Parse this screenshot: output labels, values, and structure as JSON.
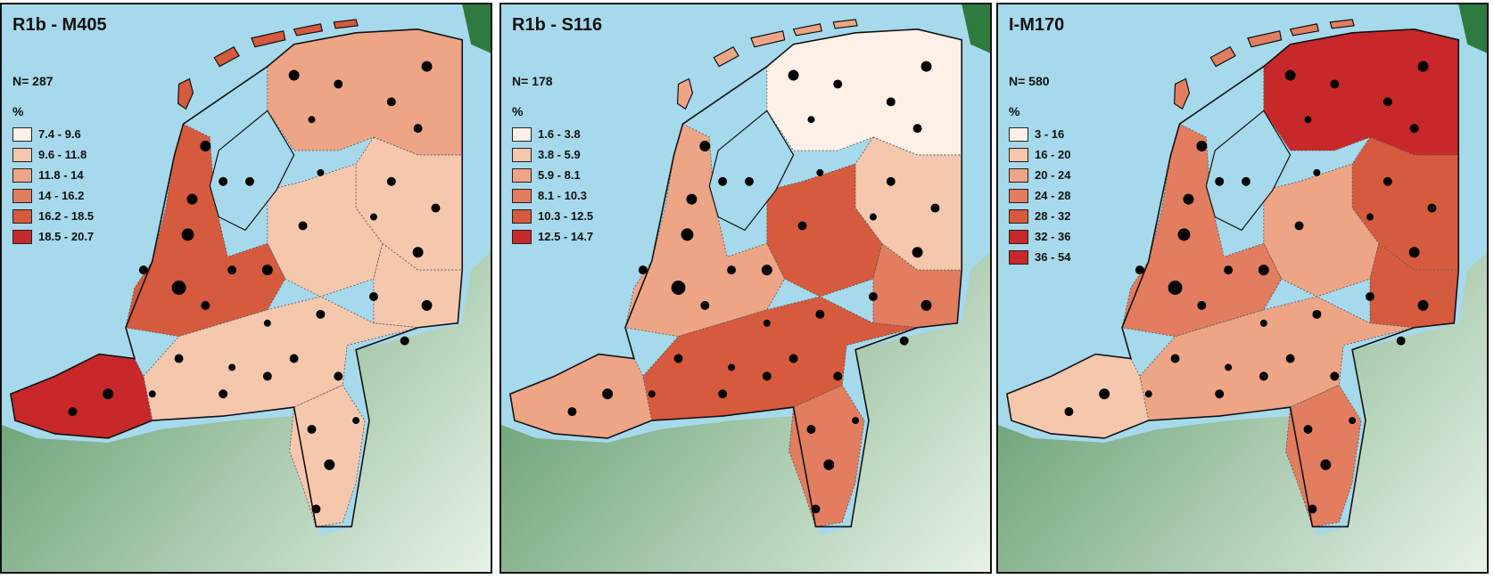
{
  "colors": {
    "sea": "#a6d9ec",
    "land_dark": "#2f7a3e",
    "land_light": "#e6f2e6",
    "border": "#111111"
  },
  "panels": [
    {
      "title": "R1b - M405",
      "n": "N= 287",
      "unit": "%",
      "legend": [
        {
          "label": "7.4 - 9.6",
          "color": "#fdf0e6"
        },
        {
          "label": "9.6 - 11.8",
          "color": "#f5c7ad"
        },
        {
          "label": "11.8 - 14",
          "color": "#eda586"
        },
        {
          "label": "14 - 16.2",
          "color": "#e27d60"
        },
        {
          "label": "16.2 - 18.5",
          "color": "#d65a3d"
        },
        {
          "label": "18.5 - 20.7",
          "color": "#c8282a"
        }
      ],
      "regions": {
        "west": 4,
        "north": 2,
        "northeast": 1,
        "center": 1,
        "east": 1,
        "south": 1,
        "southwest": 5,
        "limburg": 1
      }
    },
    {
      "title": "R1b - S116",
      "n": "N= 178",
      "unit": "%",
      "legend": [
        {
          "label": "1.6 - 3.8",
          "color": "#fdf0e6"
        },
        {
          "label": "3.8 - 5.9",
          "color": "#f5c7ad"
        },
        {
          "label": "5.9 - 8.1",
          "color": "#eda586"
        },
        {
          "label": "8.1 - 10.3",
          "color": "#e27d60"
        },
        {
          "label": "10.3 - 12.5",
          "color": "#d65a3d"
        },
        {
          "label": "12.5 - 14.7",
          "color": "#c8282a"
        }
      ],
      "regions": {
        "west": 2,
        "north": 0,
        "northeast": 1,
        "center": 4,
        "east": 3,
        "south": 4,
        "southwest": 2,
        "limburg": 3
      }
    },
    {
      "title": "I-M170",
      "n": "N= 580",
      "unit": "%",
      "legend": [
        {
          "label": "3 - 16",
          "color": "#fdf0e6"
        },
        {
          "label": "16 - 20",
          "color": "#f5c7ad"
        },
        {
          "label": "20 - 24",
          "color": "#eda586"
        },
        {
          "label": "24 - 28",
          "color": "#e27d60"
        },
        {
          "label": "28 - 32",
          "color": "#d65a3d"
        },
        {
          "label": "32 - 36",
          "color": "#c8282a"
        },
        {
          "label": "36 - 54",
          "color": "#c8282a"
        }
      ],
      "regions": {
        "west": 3,
        "north": 5,
        "northeast": 4,
        "center": 2,
        "east": 4,
        "south": 2,
        "southwest": 1,
        "limburg": 3
      }
    }
  ]
}
